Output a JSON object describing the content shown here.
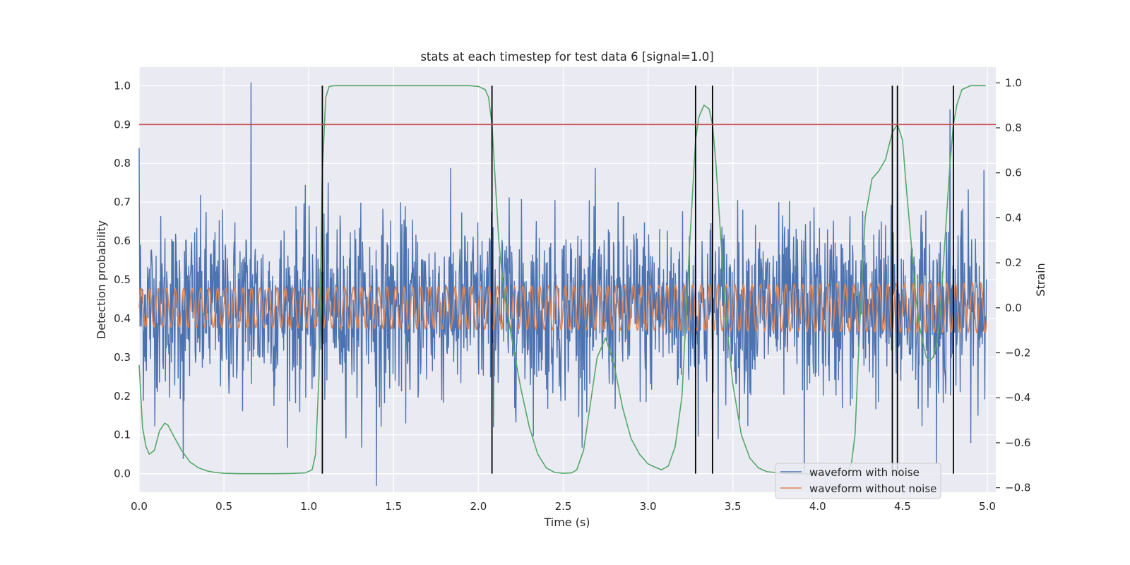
{
  "chart_data": {
    "type": "line",
    "title": "stats at each timestep for test data 6 [signal=1.0]",
    "xlabel": "Time (s)",
    "ylabel_left": "Detection probability",
    "ylabel_right": "Strain",
    "xlim": [
      0,
      5.05
    ],
    "ylim_left": [
      -0.048,
      1.048
    ],
    "ylim_right": [
      -0.82,
      1.07
    ],
    "x_ticks": [
      0,
      0.5,
      1.0,
      1.5,
      2.0,
      2.5,
      3.0,
      3.5,
      4.0,
      4.5,
      5.0
    ],
    "x_tick_labels": [
      "0.0",
      "0.5",
      "1.0",
      "1.5",
      "2.0",
      "2.5",
      "3.0",
      "3.5",
      "4.0",
      "4.5",
      "5.0"
    ],
    "y_left_ticks": [
      0,
      0.1,
      0.2,
      0.3,
      0.4,
      0.5,
      0.6,
      0.7,
      0.8,
      0.9,
      1.0
    ],
    "y_left_tick_labels": [
      "0.0",
      "0.1",
      "0.2",
      "0.3",
      "0.4",
      "0.5",
      "0.6",
      "0.7",
      "0.8",
      "0.9",
      "1.0"
    ],
    "y_right_ticks": [
      -0.8,
      -0.6,
      -0.4,
      -0.2,
      0.0,
      0.2,
      0.4,
      0.6,
      0.8,
      1.0
    ],
    "y_right_tick_labels": [
      "−0.8",
      "−0.6",
      "−0.4",
      "−0.2",
      "0.0",
      "0.2",
      "0.4",
      "0.6",
      "0.8",
      "1.0"
    ],
    "grid": true,
    "legend_position": "lower-right",
    "threshold": {
      "y": 0.9,
      "axis": "left",
      "color": "#c44e52"
    },
    "vertical_markers": {
      "x": [
        1.08,
        2.08,
        3.28,
        3.38,
        4.44,
        4.47,
        4.8
      ],
      "ymin": 0,
      "ymax": 1.0,
      "color": "#000000"
    },
    "series": [
      {
        "name": "waveform with noise",
        "axis": "right",
        "color": "#4c72b0",
        "x_range": [
          0,
          4.995
        ],
        "samples": 2000,
        "amplitude_range": [
          -0.62,
          0.62
        ],
        "peaks": [
          {
            "x": 0.66,
            "y": 1.0
          },
          {
            "x": 4.47,
            "y": 0.9
          },
          {
            "x": 4.78,
            "y": 0.88
          },
          {
            "x": 0.0,
            "y": 0.71
          },
          {
            "x": 4.98,
            "y": 0.61
          },
          {
            "x": 1.4,
            "y": -0.79
          },
          {
            "x": 3.92,
            "y": -0.73
          },
          {
            "x": 0.26,
            "y": -0.67
          },
          {
            "x": 4.7,
            "y": -0.69
          }
        ]
      },
      {
        "name": "waveform without noise",
        "axis": "right",
        "color": "#dd8452",
        "x_range": [
          0,
          4.995
        ],
        "frequency_hz": 20,
        "amplitude_start": 0.085,
        "amplitude_end": 0.11
      },
      {
        "name": "",
        "axis": "left",
        "color": "#55a868",
        "x": [
          0.0,
          0.02,
          0.04,
          0.06,
          0.09,
          0.12,
          0.15,
          0.17,
          0.2,
          0.25,
          0.3,
          0.35,
          0.4,
          0.45,
          0.5,
          0.6,
          0.7,
          0.8,
          0.9,
          0.98,
          1.02,
          1.04,
          1.06,
          1.08,
          1.1,
          1.12,
          1.15,
          1.3,
          1.5,
          1.7,
          1.9,
          1.95,
          2.0,
          2.04,
          2.06,
          2.08,
          2.1,
          2.12,
          2.15,
          2.2,
          2.25,
          2.3,
          2.35,
          2.4,
          2.45,
          2.5,
          2.55,
          2.58,
          2.62,
          2.65,
          2.7,
          2.75,
          2.8,
          2.85,
          2.9,
          2.95,
          3.0,
          3.05,
          3.08,
          3.12,
          3.16,
          3.2,
          3.24,
          3.28,
          3.3,
          3.33,
          3.36,
          3.38,
          3.4,
          3.43,
          3.46,
          3.5,
          3.55,
          3.6,
          3.65,
          3.7,
          3.8,
          3.9,
          4.0,
          4.1,
          4.18,
          4.2,
          4.22,
          4.25,
          4.28,
          4.32,
          4.36,
          4.4,
          4.44,
          4.47,
          4.5,
          4.52,
          4.55,
          4.58,
          4.6,
          4.62,
          4.64,
          4.66,
          4.68,
          4.7,
          4.72,
          4.75,
          4.78,
          4.8,
          4.82,
          4.85,
          4.9,
          4.95,
          4.99
        ],
        "y": [
          0.28,
          0.12,
          0.07,
          0.05,
          0.06,
          0.11,
          0.13,
          0.125,
          0.1,
          0.06,
          0.03,
          0.015,
          0.007,
          0.003,
          0.001,
          0.0,
          0.0,
          0.0,
          0.0005,
          0.002,
          0.01,
          0.05,
          0.25,
          0.78,
          0.97,
          0.998,
          1.0,
          1.0,
          1.0,
          1.0,
          1.0,
          1.0,
          0.998,
          0.99,
          0.97,
          0.9,
          0.75,
          0.6,
          0.47,
          0.34,
          0.22,
          0.12,
          0.05,
          0.015,
          0.003,
          0.001,
          0.002,
          0.01,
          0.06,
          0.15,
          0.3,
          0.35,
          0.28,
          0.17,
          0.09,
          0.05,
          0.025,
          0.015,
          0.01,
          0.02,
          0.07,
          0.2,
          0.55,
          0.86,
          0.92,
          0.95,
          0.94,
          0.9,
          0.8,
          0.6,
          0.4,
          0.23,
          0.1,
          0.04,
          0.015,
          0.005,
          0.001,
          0.0,
          0.0,
          0.0,
          0.005,
          0.03,
          0.1,
          0.4,
          0.66,
          0.76,
          0.78,
          0.81,
          0.88,
          0.9,
          0.86,
          0.75,
          0.6,
          0.45,
          0.38,
          0.34,
          0.3,
          0.29,
          0.3,
          0.33,
          0.4,
          0.6,
          0.8,
          0.9,
          0.95,
          0.99,
          1.0,
          1.0,
          1.0
        ]
      }
    ]
  }
}
